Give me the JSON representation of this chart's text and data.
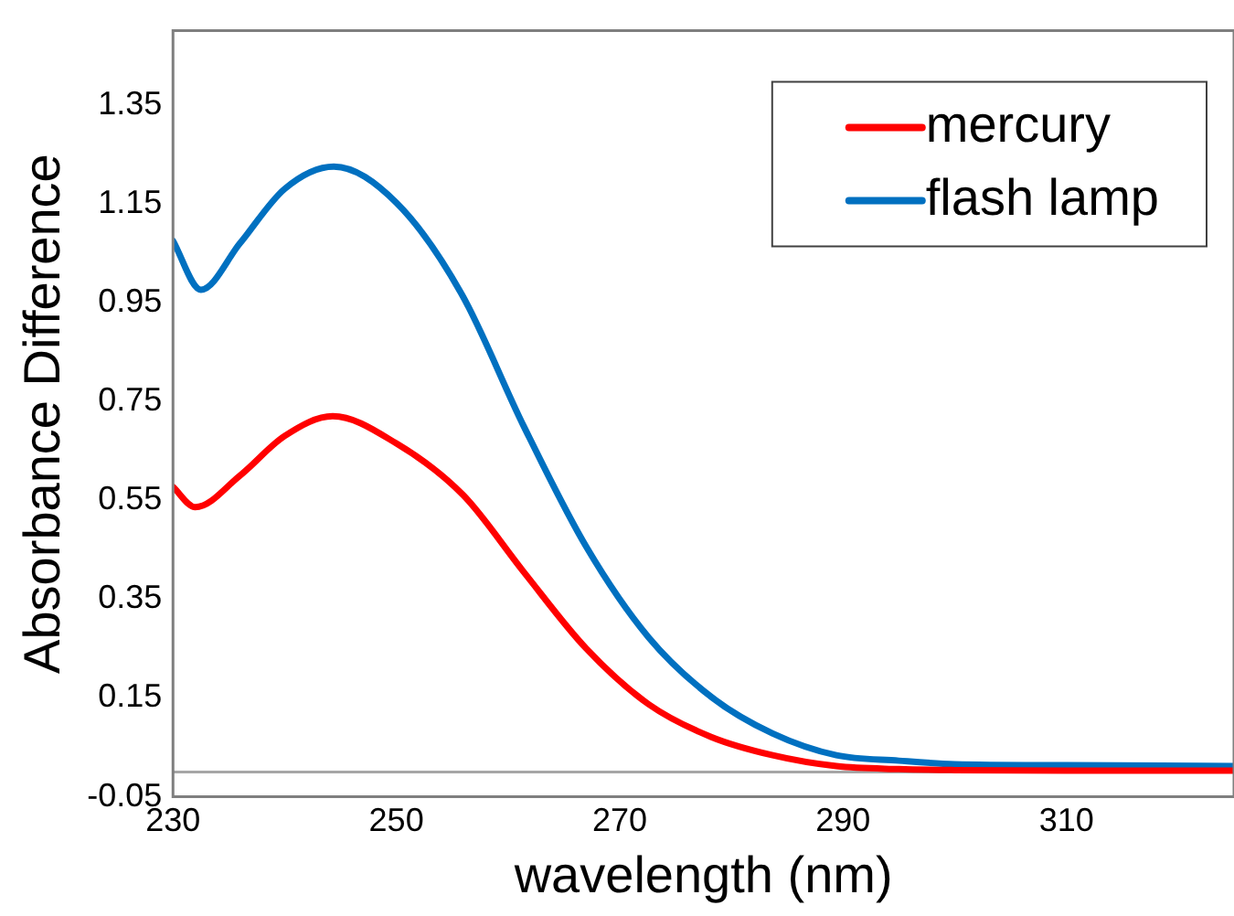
{
  "chart_data": {
    "type": "line",
    "xlabel": "wavelength (nm)",
    "ylabel": "Absorbance Difference",
    "xlim": [
      230,
      325
    ],
    "xticks": [
      230,
      250,
      270,
      290,
      310
    ],
    "ylim": [
      -0.05,
      1.5
    ],
    "yticks": [
      -0.05,
      0.15,
      0.35,
      0.55,
      0.75,
      0.95,
      1.15,
      1.35
    ],
    "grid": false,
    "legend": "top right",
    "marker": "none",
    "line_style": "solid",
    "ref_lines": [
      {
        "axis": "y",
        "value": 0,
        "color": "#a6a6a6"
      }
    ],
    "series": [
      {
        "name": "mercury",
        "color": "#ff0000",
        "x": [
          230,
          232,
          236,
          240,
          244.3,
          250,
          256,
          261.4,
          267,
          272.6,
          278.2,
          283.7,
          289.4,
          295,
          300,
          310,
          325
        ],
        "values": [
          0.577,
          0.536,
          0.6,
          0.68,
          0.72,
          0.665,
          0.56,
          0.405,
          0.25,
          0.137,
          0.071,
          0.034,
          0.012,
          0.006,
          0.004,
          0.003,
          0.003
        ]
      },
      {
        "name": "flash lamp",
        "color": "#0070c0",
        "x": [
          230,
          232.5,
          236,
          240,
          244.4,
          250,
          255.8,
          261.4,
          267,
          272.6,
          278.2,
          283.7,
          289.4,
          295,
          300,
          310,
          325
        ],
        "values": [
          1.075,
          0.976,
          1.07,
          1.18,
          1.225,
          1.152,
          0.969,
          0.7,
          0.456,
          0.272,
          0.152,
          0.078,
          0.034,
          0.023,
          0.016,
          0.014,
          0.012
        ]
      }
    ]
  }
}
